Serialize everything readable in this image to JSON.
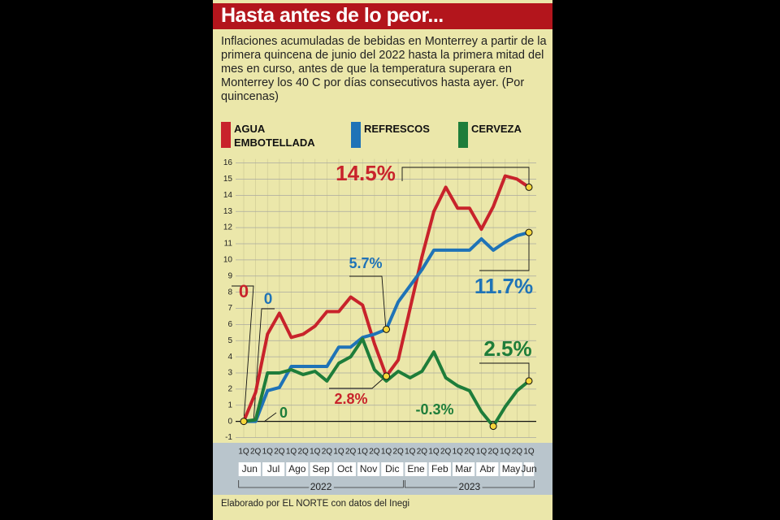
{
  "chart_data": {
    "type": "line",
    "title": "Hasta antes de lo peor...",
    "subtitle": "Inflaciones acumuladas de bebidas en Monterrey a partir de la primera quincena de junio del 2022 hasta la primera mitad del mes en curso, antes de que la temperatura superara en Monterrey los 40 C por días consecutivos hasta ayer. (Por quincenas)",
    "categories": [
      "1Q",
      "2Q",
      "1Q",
      "2Q",
      "1Q",
      "2Q",
      "1Q",
      "2Q",
      "1Q",
      "2Q",
      "1Q",
      "2Q",
      "1Q",
      "2Q",
      "1Q",
      "2Q",
      "1Q",
      "2Q",
      "1Q",
      "2Q",
      "1Q",
      "2Q",
      "1Q",
      "2Q",
      "1Q"
    ],
    "months": [
      "Jun",
      "Jul",
      "Ago",
      "Sep",
      "Oct",
      "Nov",
      "Dic",
      "Ene",
      "Feb",
      "Mar",
      "Abr",
      "May",
      "Jun"
    ],
    "years": [
      "2022",
      "2023"
    ],
    "series": [
      {
        "name": "AGUA EMBOTELLADA",
        "color": "#c8232b",
        "values": [
          0,
          1.8,
          5.4,
          6.7,
          5.2,
          5.4,
          5.9,
          6.8,
          6.8,
          7.7,
          7.2,
          4.8,
          2.8,
          3.8,
          7.0,
          10.2,
          13.0,
          14.5,
          13.2,
          13.2,
          11.9,
          13.3,
          15.2,
          15.0,
          14.5
        ]
      },
      {
        "name": "REFRESCOS",
        "color": "#1f73b7",
        "values": [
          0,
          0,
          1.9,
          2.1,
          3.4,
          3.4,
          3.4,
          3.4,
          4.6,
          4.6,
          5.2,
          5.4,
          5.7,
          7.4,
          8.4,
          9.4,
          10.6,
          10.6,
          10.6,
          10.6,
          11.3,
          10.6,
          11.1,
          11.5,
          11.7
        ]
      },
      {
        "name": "CERVEZA",
        "color": "#1e7d3a",
        "values": [
          0,
          0.1,
          3.0,
          3.0,
          3.2,
          2.9,
          3.1,
          2.5,
          3.6,
          4.0,
          5.1,
          3.2,
          2.5,
          3.1,
          2.7,
          3.1,
          4.3,
          2.7,
          2.2,
          1.9,
          0.6,
          -0.3,
          0.9,
          1.9,
          2.5
        ]
      }
    ],
    "ylim": [
      -1,
      16
    ],
    "yticks": [
      -1,
      0,
      1,
      2,
      3,
      4,
      5,
      6,
      7,
      8,
      9,
      10,
      11,
      12,
      13,
      14,
      15,
      16
    ],
    "grid": true,
    "annotations": [
      "0",
      "0",
      "0",
      "5.7%",
      "14.5%",
      "11.7%",
      "2.8%",
      "-0.3%",
      "2.5%"
    ],
    "source": "Elaborado por EL NORTE con datos del Inegi"
  }
}
